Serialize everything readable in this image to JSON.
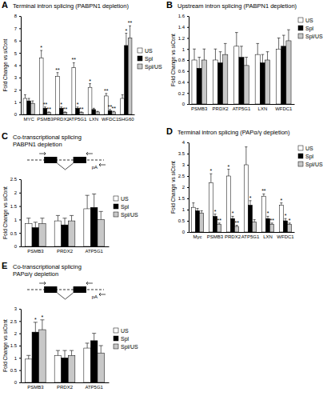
{
  "chart_data": [
    {
      "type": "bar",
      "panel": "A",
      "title": "Terminal intron splicing (PABPN1 depletion)",
      "y_label": "Fold Change vs siCont",
      "categories": [
        "MYC",
        "PSMB3",
        "PRDX2",
        "ATP5G1",
        "LXN",
        "WFDC1",
        "SHG60"
      ],
      "ylim": [
        0,
        8
      ],
      "yticks": [
        0,
        1,
        2,
        3,
        4,
        5,
        6,
        7,
        8
      ],
      "grid": false,
      "legend": "right",
      "series": [
        {
          "name": "US",
          "color": "#ffffff",
          "values": [
            1.3,
            4.6,
            3.1,
            3.8,
            2.2,
            1.5,
            1.3
          ],
          "errors": [
            0.3,
            0.6,
            0.3,
            0.4,
            0.3,
            0.2,
            0.3
          ],
          "significance": [
            null,
            "*",
            "**",
            "**",
            "*",
            "**",
            null
          ]
        },
        {
          "name": "Spl",
          "color": "#000000",
          "values": [
            1.1,
            0.5,
            0.5,
            0.5,
            0.4,
            0.3,
            5.6
          ],
          "errors": [
            0.2,
            0.1,
            0.1,
            0.1,
            0.1,
            0.1,
            1.0
          ],
          "significance": [
            null,
            "**",
            "*",
            "*",
            null,
            "**",
            "*"
          ]
        },
        {
          "name": "Spl/US",
          "color": "#c8c8c8",
          "values": [
            0.9,
            0.15,
            0.15,
            0.15,
            0.2,
            0.2,
            6.2
          ],
          "errors": [
            0.2,
            0.05,
            0.05,
            0.05,
            0.05,
            0.05,
            1.0
          ],
          "significance": [
            null,
            "**",
            "**",
            "**",
            null,
            "**",
            "**"
          ]
        }
      ]
    },
    {
      "type": "bar",
      "panel": "B",
      "title": "Upstream intron splicing (PABPN1 depletion)",
      "y_label": "Fold Change vs siCont",
      "categories": [
        "PSMB3",
        "PRDX2",
        "ATP5G1",
        "LXN",
        "WFDC1"
      ],
      "ylim": [
        0,
        1.6
      ],
      "yticks": [
        0,
        0.2,
        0.4,
        0.6,
        0.8,
        1,
        1.2,
        1.4,
        1.6
      ],
      "grid": false,
      "legend": "right",
      "series": [
        {
          "name": "US",
          "color": "#ffffff",
          "values": [
            0.8,
            0.8,
            1.05,
            0.9,
            1.0
          ],
          "errors": [
            0.2,
            0.2,
            0.25,
            0.2,
            0.2
          ],
          "significance": [
            null,
            null,
            null,
            null,
            null
          ]
        },
        {
          "name": "Spl",
          "color": "#000000",
          "values": [
            0.65,
            0.75,
            0.85,
            0.75,
            1.05
          ],
          "errors": [
            0.2,
            0.2,
            0.2,
            0.15,
            0.2
          ],
          "significance": [
            null,
            null,
            null,
            null,
            null
          ]
        },
        {
          "name": "Spl/US",
          "color": "#c8c8c8",
          "values": [
            0.8,
            0.9,
            0.7,
            0.8,
            1.15
          ],
          "errors": [
            0.2,
            0.2,
            0.15,
            0.15,
            0.2
          ],
          "significance": [
            null,
            null,
            null,
            null,
            null
          ]
        }
      ]
    },
    {
      "type": "bar",
      "panel": "C",
      "title": [
        "Co-transcriptional splicing",
        "PABPN1 depletion"
      ],
      "y_label": "Fold Change vs siCont",
      "diagram_label": "pA",
      "categories": [
        "PSMB3",
        "PRDX2",
        "ATP5G1"
      ],
      "ylim": [
        0,
        2.5
      ],
      "yticks": [
        0,
        0.5,
        1,
        1.5,
        2,
        2.5
      ],
      "grid": false,
      "legend": "right",
      "series": [
        {
          "name": "US",
          "color": "#ffffff",
          "values": [
            0.85,
            0.95,
            1.4
          ],
          "errors": [
            0.2,
            0.2,
            0.5
          ],
          "significance": [
            null,
            null,
            null
          ]
        },
        {
          "name": "Spl",
          "color": "#000000",
          "values": [
            0.7,
            0.8,
            1.45
          ],
          "errors": [
            0.2,
            0.25,
            0.5
          ],
          "significance": [
            null,
            null,
            null
          ]
        },
        {
          "name": "Spl/US",
          "color": "#c8c8c8",
          "values": [
            0.85,
            0.95,
            1.0
          ],
          "errors": [
            0.2,
            0.2,
            0.3
          ],
          "significance": [
            null,
            null,
            null
          ]
        }
      ]
    },
    {
      "type": "bar",
      "panel": "D",
      "title": "Terminal intron splicing (PAPα/γ depletion)",
      "y_label": "Fold Change vs siCont",
      "categories": [
        "Myc",
        "PSMB3",
        "PRDX2",
        "ATP5G1",
        "LXN",
        "WFDC1"
      ],
      "ylim": [
        0,
        4
      ],
      "yticks": [
        0,
        0.5,
        1,
        1.5,
        2,
        2.5,
        3,
        3.5,
        4
      ],
      "grid": false,
      "legend": "right",
      "series": [
        {
          "name": "US",
          "color": "#ffffff",
          "values": [
            1.1,
            2.2,
            2.5,
            3.0,
            1.6,
            1.2
          ],
          "errors": [
            0.2,
            0.4,
            0.3,
            0.8,
            0.1,
            0.1
          ],
          "significance": [
            null,
            "*",
            "*",
            null,
            "**",
            "*"
          ]
        },
        {
          "name": "Spl",
          "color": "#000000",
          "values": [
            0.95,
            0.7,
            0.6,
            1.2,
            0.6,
            0.5
          ],
          "errors": [
            0.1,
            0.1,
            0.1,
            0.2,
            0.1,
            0.1
          ],
          "significance": [
            null,
            "*",
            "*",
            "*",
            "*",
            "*"
          ]
        },
        {
          "name": "Spl/US",
          "color": "#c8c8c8",
          "values": [
            0.85,
            0.35,
            0.25,
            0.45,
            0.35,
            0.35
          ],
          "errors": [
            0.1,
            0.05,
            0.05,
            0.1,
            0.05,
            0.05
          ],
          "significance": [
            null,
            "**",
            "**",
            null,
            "**",
            "*"
          ]
        }
      ]
    },
    {
      "type": "bar",
      "panel": "E",
      "title": [
        "Co-transcriptional splicing",
        "PAPα/γ depletion"
      ],
      "y_label": "Fold Change vs siCont",
      "diagram_label": "pA",
      "categories": [
        "PSMB3",
        "PRDX2",
        "ATP5G1"
      ],
      "ylim": [
        0,
        3
      ],
      "yticks": [
        0,
        0.5,
        1,
        1.5,
        2,
        2.5,
        3
      ],
      "grid": false,
      "legend": "right",
      "series": [
        {
          "name": "US",
          "color": "#ffffff",
          "values": [
            0.95,
            1.1,
            1.4
          ],
          "errors": [
            0.15,
            0.2,
            0.2
          ],
          "significance": [
            null,
            null,
            null
          ]
        },
        {
          "name": "Spl",
          "color": "#000000",
          "values": [
            2.05,
            1.0,
            1.7
          ],
          "errors": [
            0.4,
            0.3,
            0.3
          ],
          "significance": [
            "*",
            null,
            null
          ]
        },
        {
          "name": "Spl/US",
          "color": "#c8c8c8",
          "values": [
            2.15,
            1.1,
            1.2
          ],
          "errors": [
            0.4,
            0.2,
            0.3
          ],
          "significance": [
            "*",
            null,
            null
          ]
        }
      ]
    }
  ]
}
